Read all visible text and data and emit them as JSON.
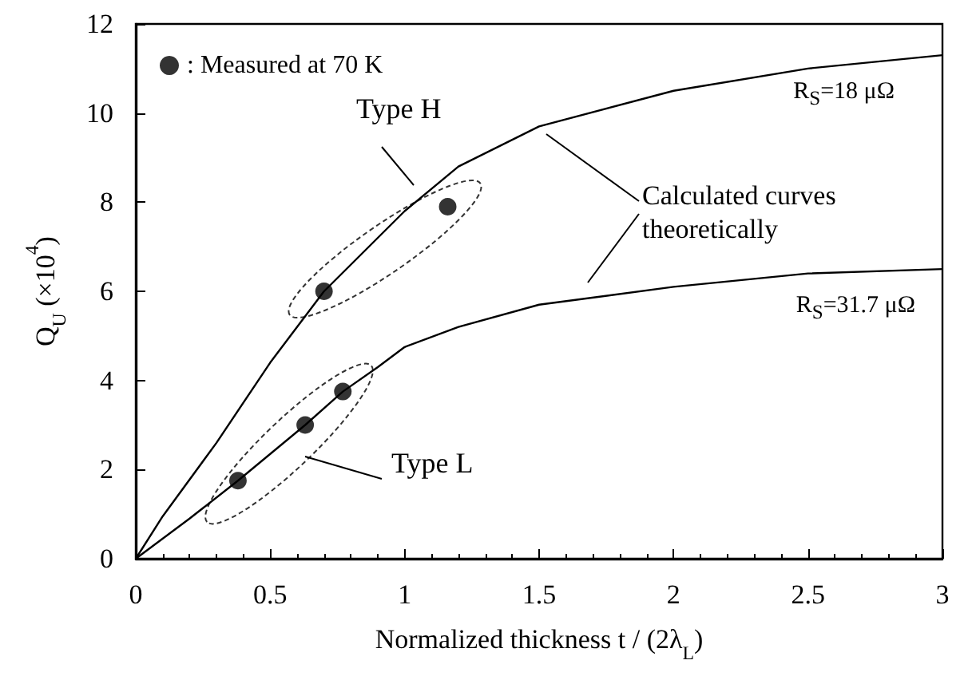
{
  "chart_data": {
    "type": "line",
    "xlabel": "Normalized thickness t / (2λ$_{L}$)",
    "ylabel": "Q$_{U}$ (×10$^{4}$)",
    "xlim": [
      0,
      3
    ],
    "xticks": [
      0,
      0.5,
      1,
      1.5,
      2,
      2.5,
      3
    ],
    "ylim": [
      0,
      12
    ],
    "yticks": [
      0,
      2,
      4,
      6,
      8,
      10,
      12
    ],
    "grid": false,
    "legend": "top left",
    "series": [
      {
        "name": "R$_{S}$=18 μΩ",
        "color": "#000000",
        "marker": "none",
        "x": [
          0,
          0.1,
          0.3,
          0.5,
          0.7,
          1.0,
          1.2,
          1.5,
          2.0,
          2.5,
          3.0
        ],
        "values": [
          0,
          0.95,
          2.6,
          4.4,
          6.0,
          7.8,
          8.8,
          9.7,
          10.5,
          11.0,
          11.3
        ]
      },
      {
        "name": "R$_{S}$=31.7 μΩ",
        "color": "#000000",
        "marker": "none",
        "x": [
          0,
          0.2,
          0.38,
          0.63,
          0.77,
          0.9,
          1.0,
          1.2,
          1.5,
          2.0,
          2.5,
          3.0
        ],
        "values": [
          0,
          0.9,
          1.75,
          3.0,
          3.75,
          4.3,
          4.75,
          5.2,
          5.7,
          6.1,
          6.4,
          6.5
        ]
      },
      {
        "name": ": Measured at 70 K",
        "type": "scatter",
        "color": "#000000",
        "marker": "circle",
        "x": [
          0.7,
          1.16,
          0.38,
          0.63,
          0.77
        ],
        "values": [
          6.0,
          7.9,
          1.75,
          3.0,
          3.75
        ]
      }
    ],
    "annotations": [
      "Type H",
      "Type L",
      "Calculated curves theoretically"
    ]
  }
}
